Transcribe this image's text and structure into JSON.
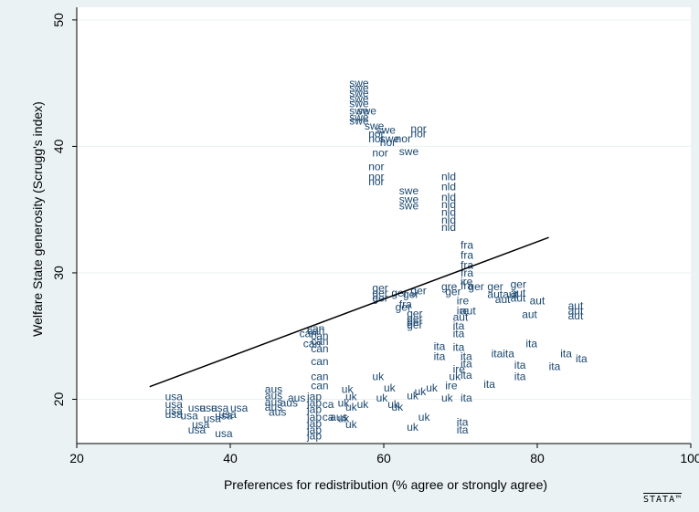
{
  "chart_data": {
    "type": "scatter",
    "marker": "text-labels",
    "xlabel": "Preferences for redistribution (% agree or strongly agree)",
    "ylabel": "Welfare State generosity (Scrugg's index)",
    "xlim": [
      20,
      100
    ],
    "ylim": [
      16.5,
      51
    ],
    "xticks": [
      20,
      40,
      60,
      80,
      100
    ],
    "yticks": [
      20,
      30,
      40,
      50
    ],
    "grid": "horizontal",
    "colors": {
      "points": "#1a476f",
      "fit": "#000000",
      "background": "#eaf2f3",
      "plot_background": "#ffffff"
    },
    "fit_line": {
      "x": [
        29.5,
        81.5
      ],
      "y": [
        21.0,
        32.8
      ]
    },
    "points": [
      {
        "label": "usa",
        "x": 31.5,
        "y": 20.2
      },
      {
        "label": "usa",
        "x": 31.5,
        "y": 19.6
      },
      {
        "label": "usa",
        "x": 31.5,
        "y": 19.1
      },
      {
        "label": "usa",
        "x": 31.5,
        "y": 18.8
      },
      {
        "label": "usa",
        "x": 33.5,
        "y": 18.7
      },
      {
        "label": "usa",
        "x": 34.5,
        "y": 19.3
      },
      {
        "label": "usa",
        "x": 35.0,
        "y": 18.0
      },
      {
        "label": "usa",
        "x": 34.5,
        "y": 17.6
      },
      {
        "label": "usa",
        "x": 36.0,
        "y": 19.3
      },
      {
        "label": "usa",
        "x": 36.5,
        "y": 18.5
      },
      {
        "label": "usa",
        "x": 37.5,
        "y": 19.3
      },
      {
        "label": "usa",
        "x": 38.0,
        "y": 18.7
      },
      {
        "label": "usa",
        "x": 38.5,
        "y": 18.8
      },
      {
        "label": "usa",
        "x": 40.0,
        "y": 19.3
      },
      {
        "label": "usa",
        "x": 38.0,
        "y": 17.3
      },
      {
        "label": "aus",
        "x": 44.5,
        "y": 20.8
      },
      {
        "label": "aus",
        "x": 44.5,
        "y": 20.3
      },
      {
        "label": "aus",
        "x": 44.5,
        "y": 19.8
      },
      {
        "label": "aus",
        "x": 44.5,
        "y": 19.4
      },
      {
        "label": "aus",
        "x": 45.0,
        "y": 19.0
      },
      {
        "label": "aus",
        "x": 46.5,
        "y": 19.7
      },
      {
        "label": "aus",
        "x": 47.5,
        "y": 20.1
      },
      {
        "label": "aus",
        "x": 53.0,
        "y": 18.6
      },
      {
        "label": "jap",
        "x": 50.0,
        "y": 20.2
      },
      {
        "label": "jap",
        "x": 50.0,
        "y": 19.7
      },
      {
        "label": "jap",
        "x": 50.0,
        "y": 19.2
      },
      {
        "label": "jap",
        "x": 50.0,
        "y": 18.6
      },
      {
        "label": "jap",
        "x": 50.0,
        "y": 18.1
      },
      {
        "label": "jap",
        "x": 50.0,
        "y": 17.6
      },
      {
        "label": "jap",
        "x": 50.0,
        "y": 17.1
      },
      {
        "label": "ca",
        "x": 52.0,
        "y": 19.6
      },
      {
        "label": "ca",
        "x": 52.0,
        "y": 18.6
      },
      {
        "label": "can",
        "x": 50.0,
        "y": 25.4
      },
      {
        "label": "can",
        "x": 49.0,
        "y": 25.2
      },
      {
        "label": "can",
        "x": 50.5,
        "y": 25.0
      },
      {
        "label": "can",
        "x": 50.5,
        "y": 24.6
      },
      {
        "label": "can",
        "x": 49.5,
        "y": 24.4
      },
      {
        "label": "can",
        "x": 50.5,
        "y": 24.0
      },
      {
        "label": "can",
        "x": 50.5,
        "y": 23.0
      },
      {
        "label": "can",
        "x": 50.5,
        "y": 21.8
      },
      {
        "label": "can",
        "x": 50.5,
        "y": 21.1
      },
      {
        "label": "can",
        "x": 50.0,
        "y": 25.6
      },
      {
        "label": "swe",
        "x": 55.5,
        "y": 45.0
      },
      {
        "label": "swe",
        "x": 55.5,
        "y": 44.6
      },
      {
        "label": "swe",
        "x": 55.5,
        "y": 44.2
      },
      {
        "label": "swe",
        "x": 55.5,
        "y": 43.8
      },
      {
        "label": "swe",
        "x": 55.5,
        "y": 43.4
      },
      {
        "label": "swe",
        "x": 55.5,
        "y": 42.8
      },
      {
        "label": "swe",
        "x": 56.5,
        "y": 42.8
      },
      {
        "label": "swe",
        "x": 55.5,
        "y": 42.3
      },
      {
        "label": "swe",
        "x": 55.5,
        "y": 42.0
      },
      {
        "label": "swe",
        "x": 57.5,
        "y": 41.6
      },
      {
        "label": "swe",
        "x": 59.0,
        "y": 41.3
      },
      {
        "label": "swe",
        "x": 59.5,
        "y": 40.6
      },
      {
        "label": "swe",
        "x": 62.0,
        "y": 39.6
      },
      {
        "label": "swe",
        "x": 62.0,
        "y": 36.5
      },
      {
        "label": "swe",
        "x": 62.0,
        "y": 35.8
      },
      {
        "label": "swe",
        "x": 62.0,
        "y": 35.3
      },
      {
        "label": "nor",
        "x": 63.5,
        "y": 41.4
      },
      {
        "label": "nor",
        "x": 63.5,
        "y": 41.0
      },
      {
        "label": "nor",
        "x": 58.0,
        "y": 41.0
      },
      {
        "label": "nor",
        "x": 58.0,
        "y": 40.6
      },
      {
        "label": "nor",
        "x": 59.5,
        "y": 40.3
      },
      {
        "label": "nor",
        "x": 58.5,
        "y": 39.5
      },
      {
        "label": "nor",
        "x": 61.5,
        "y": 40.6
      },
      {
        "label": "nor",
        "x": 58.0,
        "y": 38.4
      },
      {
        "label": "nor",
        "x": 58.0,
        "y": 37.6
      },
      {
        "label": "nor",
        "x": 58.0,
        "y": 37.2
      },
      {
        "label": "nld",
        "x": 67.5,
        "y": 37.6
      },
      {
        "label": "nld",
        "x": 67.5,
        "y": 36.8
      },
      {
        "label": "nld",
        "x": 67.5,
        "y": 36.0
      },
      {
        "label": "nld",
        "x": 67.5,
        "y": 35.4
      },
      {
        "label": "nld",
        "x": 67.5,
        "y": 34.8
      },
      {
        "label": "nld",
        "x": 67.5,
        "y": 34.2
      },
      {
        "label": "nld",
        "x": 67.5,
        "y": 33.6
      },
      {
        "label": "fra",
        "x": 70.0,
        "y": 32.2
      },
      {
        "label": "fra",
        "x": 70.0,
        "y": 31.4
      },
      {
        "label": "fra",
        "x": 70.0,
        "y": 30.6
      },
      {
        "label": "fra",
        "x": 70.0,
        "y": 30.0
      },
      {
        "label": "fra",
        "x": 70.0,
        "y": 29.0
      },
      {
        "label": "fra",
        "x": 62.0,
        "y": 27.5
      },
      {
        "label": "ger",
        "x": 58.5,
        "y": 28.8
      },
      {
        "label": "ger",
        "x": 58.5,
        "y": 28.4
      },
      {
        "label": "ger",
        "x": 58.5,
        "y": 28.0
      },
      {
        "label": "ger",
        "x": 61.0,
        "y": 28.4
      },
      {
        "label": "ger",
        "x": 62.5,
        "y": 28.3
      },
      {
        "label": "ger",
        "x": 63.5,
        "y": 28.6
      },
      {
        "label": "ger",
        "x": 61.5,
        "y": 27.3
      },
      {
        "label": "ger",
        "x": 63.0,
        "y": 26.8
      },
      {
        "label": "ger",
        "x": 63.0,
        "y": 26.4
      },
      {
        "label": "ger",
        "x": 63.0,
        "y": 25.9
      },
      {
        "label": "ger",
        "x": 63.0,
        "y": 26.1
      },
      {
        "label": "ger",
        "x": 71.0,
        "y": 28.9
      },
      {
        "label": "ger",
        "x": 73.5,
        "y": 28.9
      },
      {
        "label": "ger",
        "x": 76.5,
        "y": 29.1
      },
      {
        "label": "ger",
        "x": 68.0,
        "y": 28.5
      },
      {
        "label": "gre",
        "x": 67.5,
        "y": 28.9
      },
      {
        "label": "ire",
        "x": 70.0,
        "y": 29.3
      },
      {
        "label": "ire",
        "x": 69.5,
        "y": 27.8
      },
      {
        "label": "ire",
        "x": 69.5,
        "y": 27.0
      },
      {
        "label": "ire",
        "x": 69.0,
        "y": 22.4
      },
      {
        "label": "ire",
        "x": 68.0,
        "y": 21.1
      },
      {
        "label": "aut",
        "x": 73.5,
        "y": 28.3
      },
      {
        "label": "aut",
        "x": 74.5,
        "y": 27.9
      },
      {
        "label": "aut",
        "x": 75.5,
        "y": 28.3
      },
      {
        "label": "aut",
        "x": 76.5,
        "y": 28.4
      },
      {
        "label": "aut",
        "x": 76.5,
        "y": 28.0
      },
      {
        "label": "aut",
        "x": 79.0,
        "y": 27.8
      },
      {
        "label": "aut",
        "x": 78.0,
        "y": 26.7
      },
      {
        "label": "aut",
        "x": 84.0,
        "y": 27.4
      },
      {
        "label": "aut",
        "x": 84.0,
        "y": 27.0
      },
      {
        "label": "aut",
        "x": 84.0,
        "y": 26.6
      },
      {
        "label": "aut",
        "x": 69.0,
        "y": 26.5
      },
      {
        "label": "aut",
        "x": 70.0,
        "y": 27.0
      },
      {
        "label": "ita",
        "x": 69.0,
        "y": 25.8
      },
      {
        "label": "ita",
        "x": 69.0,
        "y": 25.2
      },
      {
        "label": "ita",
        "x": 66.5,
        "y": 24.2
      },
      {
        "label": "ita",
        "x": 66.5,
        "y": 23.4
      },
      {
        "label": "ita",
        "x": 69.0,
        "y": 24.1
      },
      {
        "label": "ita",
        "x": 70.0,
        "y": 23.4
      },
      {
        "label": "ita",
        "x": 74.0,
        "y": 23.6
      },
      {
        "label": "ita",
        "x": 75.5,
        "y": 23.6
      },
      {
        "label": "ita",
        "x": 78.5,
        "y": 24.4
      },
      {
        "label": "ita",
        "x": 81.5,
        "y": 22.6
      },
      {
        "label": "ita",
        "x": 83.0,
        "y": 23.6
      },
      {
        "label": "ita",
        "x": 85.0,
        "y": 23.2
      },
      {
        "label": "ita",
        "x": 77.0,
        "y": 22.7
      },
      {
        "label": "ita",
        "x": 77.0,
        "y": 21.8
      },
      {
        "label": "ita",
        "x": 73.0,
        "y": 21.2
      },
      {
        "label": "ita",
        "x": 70.0,
        "y": 22.8
      },
      {
        "label": "ita",
        "x": 70.0,
        "y": 21.9
      },
      {
        "label": "ita",
        "x": 70.0,
        "y": 20.1
      },
      {
        "label": "ita",
        "x": 69.5,
        "y": 18.2
      },
      {
        "label": "ita",
        "x": 69.5,
        "y": 17.6
      },
      {
        "label": "uk",
        "x": 54.5,
        "y": 20.8
      },
      {
        "label": "uk",
        "x": 55.0,
        "y": 20.2
      },
      {
        "label": "uk",
        "x": 54.0,
        "y": 19.7
      },
      {
        "label": "uk",
        "x": 55.0,
        "y": 19.4
      },
      {
        "label": "uk",
        "x": 54.0,
        "y": 18.5
      },
      {
        "label": "uk",
        "x": 55.0,
        "y": 18.0
      },
      {
        "label": "uk",
        "x": 56.5,
        "y": 19.6
      },
      {
        "label": "uk",
        "x": 58.5,
        "y": 21.8
      },
      {
        "label": "uk",
        "x": 59.0,
        "y": 20.1
      },
      {
        "label": "uk",
        "x": 60.0,
        "y": 20.9
      },
      {
        "label": "uk",
        "x": 60.5,
        "y": 19.6
      },
      {
        "label": "uk",
        "x": 61.0,
        "y": 19.4
      },
      {
        "label": "uk",
        "x": 63.0,
        "y": 20.3
      },
      {
        "label": "uk",
        "x": 64.0,
        "y": 20.6
      },
      {
        "label": "uk",
        "x": 65.5,
        "y": 20.9
      },
      {
        "label": "uk",
        "x": 67.5,
        "y": 20.1
      },
      {
        "label": "uk",
        "x": 64.5,
        "y": 18.6
      },
      {
        "label": "uk",
        "x": 63.0,
        "y": 17.8
      },
      {
        "label": "uk",
        "x": 68.5,
        "y": 21.8
      }
    ]
  }
}
